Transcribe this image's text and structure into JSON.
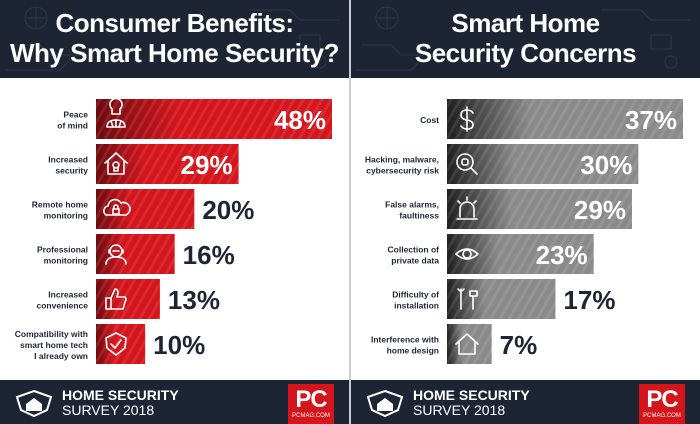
{
  "left": {
    "title_line1": "Consumer Benefits:",
    "title_line2": "Why Smart Home Security?",
    "footer_line1": "HOME SECURITY",
    "footer_line2": "SURVEY 2018",
    "badge": "PC",
    "badge_sub": "PCMAG.COM"
  },
  "right": {
    "title_line1": "Smart Home",
    "title_line2": "Security Concerns",
    "footer_line1": "HOME SECURITY",
    "footer_line2": "SURVEY 2018",
    "badge": "PC",
    "badge_sub": "PCMAG.COM"
  },
  "colors": {
    "header_bg": "#1d2534",
    "red_dark": "#6e0a0e",
    "red": "#d4151c",
    "gray_dark": "#1f1f1f",
    "gray": "#8a8a8a",
    "label_text": "#1d2534",
    "accent_red": "#d4151c"
  },
  "chart_data": [
    {
      "type": "bar",
      "orientation": "horizontal",
      "title": "Consumer Benefits: Why Smart Home Security?",
      "categories": [
        [
          "Peace",
          "of mind"
        ],
        [
          "Increased",
          "security"
        ],
        [
          "Remote home",
          "monitoring"
        ],
        [
          "Professional",
          "monitoring"
        ],
        [
          "Increased",
          "convenience"
        ],
        [
          "Compatibility with",
          "smart home tech",
          "I already own"
        ]
      ],
      "values": [
        48,
        29,
        20,
        16,
        13,
        10
      ],
      "value_labels": [
        "48%",
        "29%",
        "20%",
        "16%",
        "13%",
        "10%"
      ],
      "icons": [
        "lotus-icon",
        "house-lock-icon",
        "cloud-lock-icon",
        "operator-icon",
        "thumbs-up-icon",
        "shield-check-icon"
      ],
      "unit": "%",
      "xlim": [
        0,
        48
      ],
      "grid": false,
      "color_scheme": "red"
    },
    {
      "type": "bar",
      "orientation": "horizontal",
      "title": "Smart Home Security Concerns",
      "categories": [
        [
          "Cost"
        ],
        [
          "Hacking, malware,",
          "cybersecurity risk"
        ],
        [
          "False alarms,",
          "faultiness"
        ],
        [
          "Collection of",
          "private data"
        ],
        [
          "Difficulty of",
          "installation"
        ],
        [
          "Interference with",
          "home design"
        ]
      ],
      "values": [
        37,
        30,
        29,
        23,
        17,
        7
      ],
      "value_labels": [
        "37%",
        "30%",
        "29%",
        "23%",
        "17%",
        "7%"
      ],
      "icons": [
        "dollar-icon",
        "bug-magnifier-icon",
        "alarm-light-icon",
        "eye-icon",
        "tools-icon",
        "house-outline-icon"
      ],
      "unit": "%",
      "xlim": [
        0,
        37
      ],
      "grid": false,
      "color_scheme": "gray"
    }
  ]
}
